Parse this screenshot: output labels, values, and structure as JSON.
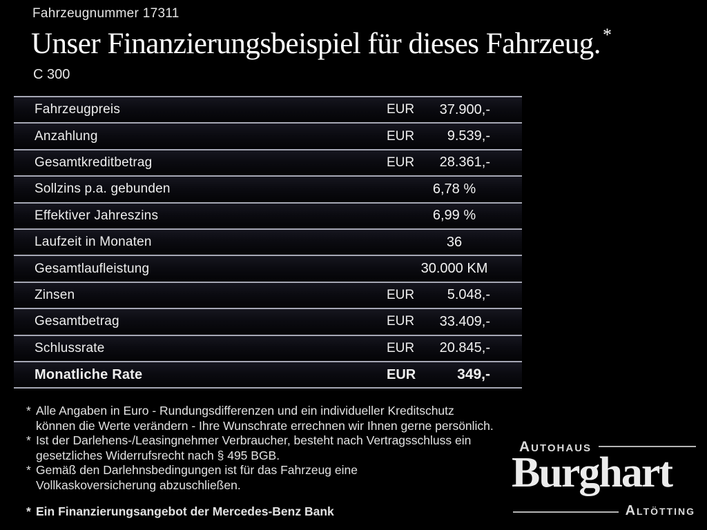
{
  "header": {
    "vehicle_number": "Fahrzeugnummer 17311",
    "title": "Unser Finanzierungsbeispiel für dieses Fahrzeug.",
    "title_asterisk": "*",
    "model": "C 300"
  },
  "finance_table": {
    "rows": [
      {
        "label": "Fahrzeugpreis",
        "currency": "EUR",
        "value": "37.900,-"
      },
      {
        "label": "Anzahlung",
        "currency": "EUR",
        "value": "9.539,-"
      },
      {
        "label": "Gesamtkreditbetrag",
        "currency": "EUR",
        "value": "28.361,-"
      },
      {
        "label": "Sollzins p.a. gebunden",
        "currency": "",
        "value": "6,78 %"
      },
      {
        "label": "Effektiver Jahreszins",
        "currency": "",
        "value": "6,99 %"
      },
      {
        "label": "Laufzeit in Monaten",
        "currency": "",
        "value": "36"
      },
      {
        "label": "Gesamtlaufleistung",
        "currency": "",
        "value": "30.000 KM"
      },
      {
        "label": "Zinsen",
        "currency": "EUR",
        "value": "5.048,-"
      },
      {
        "label": "Gesamtbetrag",
        "currency": "EUR",
        "value": "33.409,-"
      },
      {
        "label": "Schlussrate",
        "currency": "EUR",
        "value": "20.845,-"
      },
      {
        "label": "Monatliche Rate",
        "currency": "EUR",
        "value": "349,-"
      }
    ]
  },
  "footnotes": {
    "marker": "*",
    "items": [
      {
        "lines": [
          "Alle Angaben in Euro - Rundungsdifferenzen und ein individueller Kreditschutz",
          "können die Werte verändern - Ihre Wunschrate errechnen wir Ihnen gerne persönlich."
        ]
      },
      {
        "lines": [
          "Ist der Darlehens-/Leasingnehmer Verbraucher, besteht nach Vertragsschluss ein",
          "gesetzliches Widerrufsrecht nach § 495 BGB."
        ]
      },
      {
        "lines": [
          "Gemäß den Darlehnsbedingungen ist für das Fahrzeug eine",
          "Vollkaskoversicherung abzuschließen."
        ]
      }
    ],
    "financing_offer": "Ein Finanzierungsangebot der Mercedes-Benz Bank"
  },
  "dealer_logo": {
    "top_label": "Autohaus",
    "name": "Burghart",
    "bottom_label": "Altötting"
  },
  "colors": {
    "background": "#000000",
    "text": "#ededed",
    "separator_line": "#a6a8b5"
  }
}
